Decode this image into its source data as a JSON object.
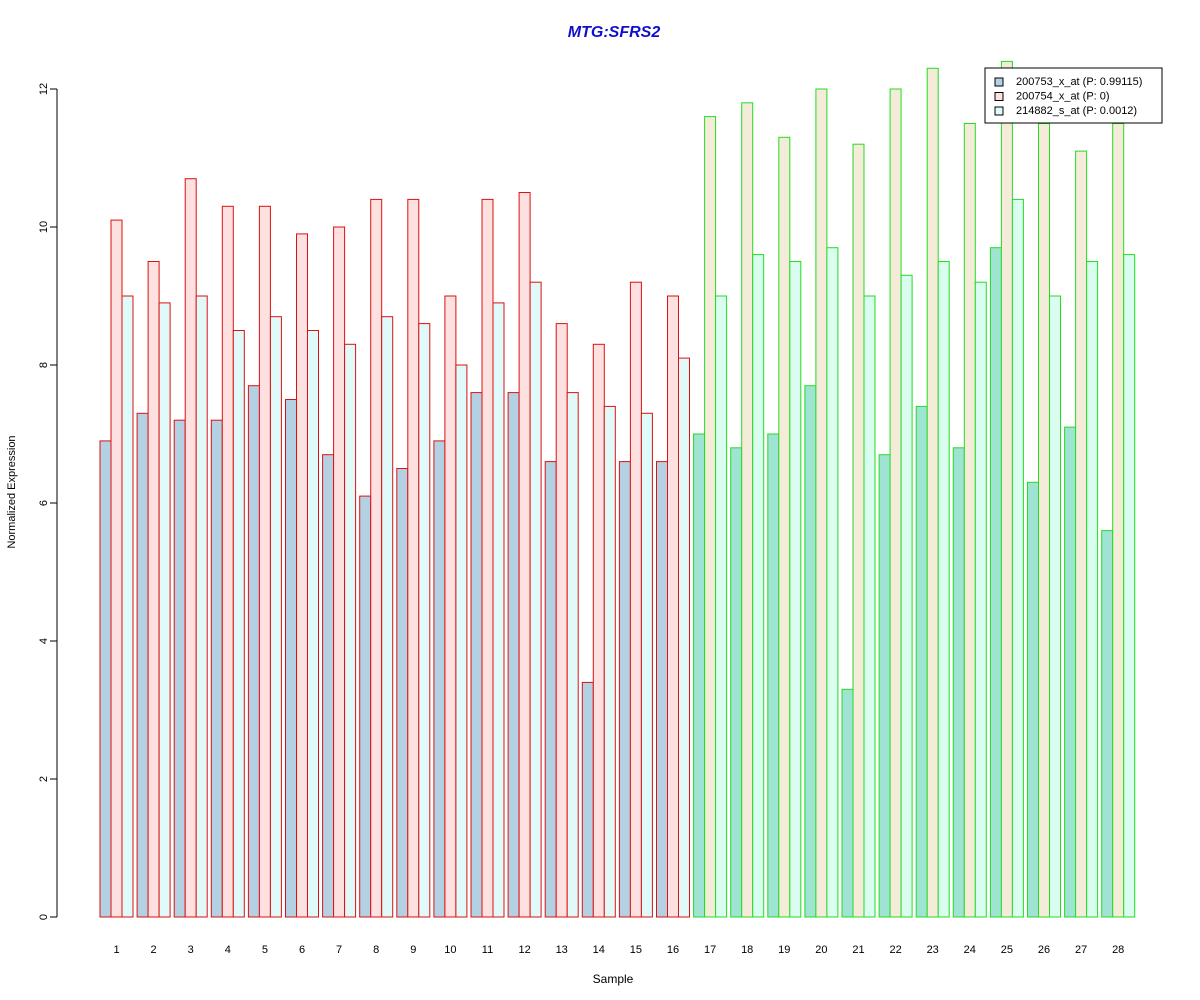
{
  "chart_data": {
    "type": "bar",
    "title": "MTG:SFRS2",
    "xlabel": "Sample",
    "ylabel": "Normalized Expression",
    "ylim": [
      0,
      12.5
    ],
    "yticks": [
      0,
      2,
      4,
      6,
      8,
      10,
      12
    ],
    "grid": false,
    "legend_position": "top-right",
    "categories": [
      "1",
      "2",
      "3",
      "4",
      "5",
      "6",
      "7",
      "8",
      "9",
      "10",
      "11",
      "12",
      "13",
      "14",
      "15",
      "16",
      "17",
      "18",
      "19",
      "20",
      "21",
      "22",
      "23",
      "24",
      "25",
      "26",
      "27",
      "28"
    ],
    "series": [
      {
        "name": "200753_x_at (P: 0.99115)",
        "values": [
          6.9,
          7.3,
          7.2,
          7.2,
          7.7,
          7.5,
          6.7,
          6.1,
          6.5,
          6.9,
          7.6,
          7.6,
          6.6,
          3.4,
          6.6,
          6.6,
          7.0,
          6.8,
          7.0,
          7.7,
          3.3,
          6.7,
          7.4,
          6.8,
          9.7,
          6.3,
          7.1,
          5.6
        ]
      },
      {
        "name": "200754_x_at (P: 0)",
        "values": [
          10.1,
          9.5,
          10.7,
          10.3,
          10.3,
          9.9,
          10.0,
          10.4,
          10.4,
          9.0,
          10.4,
          10.5,
          8.6,
          8.3,
          9.2,
          9.0,
          11.6,
          11.8,
          11.3,
          12.0,
          11.2,
          12.0,
          12.3,
          11.5,
          12.4,
          11.5,
          11.1,
          11.5
        ]
      },
      {
        "name": "214882_s_at (P: 0.0012)",
        "values": [
          9.0,
          8.9,
          9.0,
          8.5,
          8.7,
          8.5,
          8.3,
          8.7,
          8.6,
          8.0,
          8.9,
          9.2,
          7.6,
          7.4,
          7.3,
          8.1,
          9.0,
          9.6,
          9.5,
          9.7,
          9.0,
          9.3,
          9.5,
          9.2,
          10.4,
          9.0,
          9.5,
          9.6
        ]
      }
    ],
    "group_a_border_color": "#dd1111",
    "group_b_border_color": "#22dd22",
    "group_a_fill_colors": [
      "#b4d1e4",
      "#fde0e0",
      "#e0fafa"
    ],
    "group_b_fill_colors": [
      "#9fe3d3",
      "#f4ecd8",
      "#d9fdef"
    ],
    "group_a_count": 16,
    "title_color": "#1010cc",
    "legend_fill_colors": [
      "#b4d1e4",
      "#fde0e0",
      "#e0fafa"
    ]
  }
}
